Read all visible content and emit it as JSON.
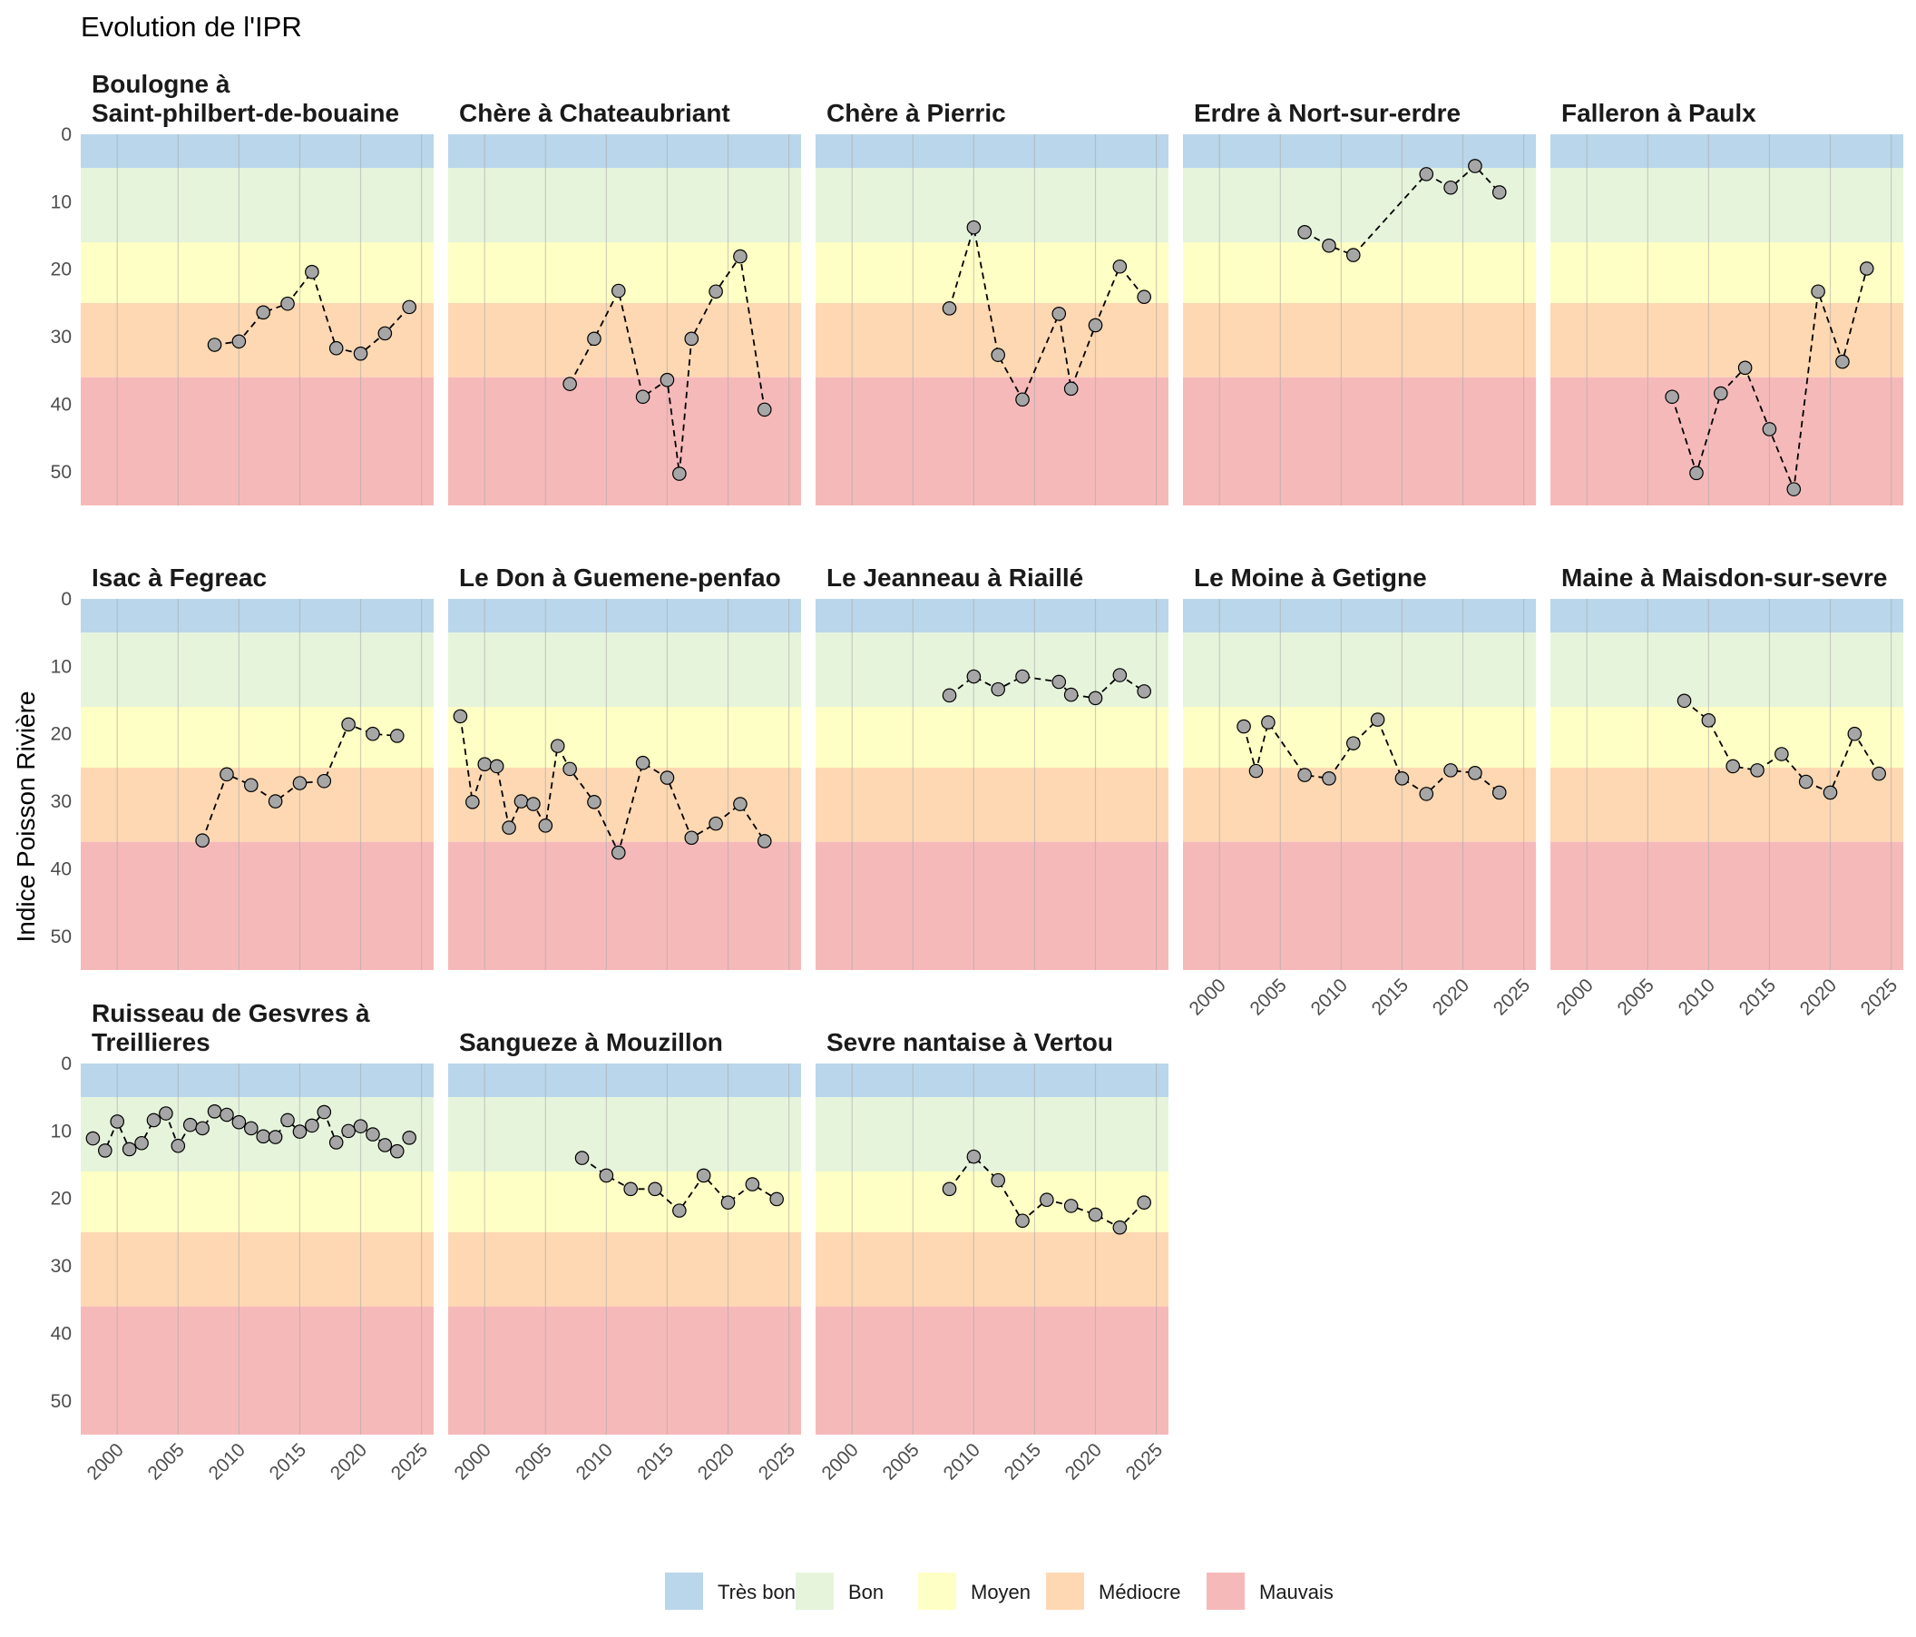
{
  "chart_data": {
    "type": "line",
    "title": "Evolution de l'IPR",
    "ylabel": "Indice Poisson Rivière",
    "xlabel": "",
    "xlim": [
      1997,
      2026
    ],
    "ylim": [
      0,
      55
    ],
    "y_reversed": true,
    "x_ticks": [
      2000,
      2005,
      2010,
      2015,
      2020,
      2025
    ],
    "y_ticks": [
      0,
      10,
      20,
      30,
      40,
      50
    ],
    "grid": true,
    "legend_position": "bottom",
    "classes": [
      {
        "label": "Très bon",
        "from": 0,
        "to": 5,
        "color": "#bad6ea"
      },
      {
        "label": "Bon",
        "from": 5,
        "to": 16,
        "color": "#e6f4dc"
      },
      {
        "label": "Moyen",
        "from": 16,
        "to": 25,
        "color": "#feffc4"
      },
      {
        "label": "Médiocre",
        "from": 25,
        "to": 36,
        "color": "#fed8b2"
      },
      {
        "label": "Mauvais",
        "from": 36,
        "to": 55,
        "color": "#f6b9ba"
      }
    ],
    "series_style": {
      "line_color": "#000000",
      "line_dash": "dashed",
      "point_fill": "#a6a6a6",
      "point_stroke": "#000000"
    },
    "panels": [
      {
        "title": [
          "Boulogne à",
          "Saint-philbert-de-bouaine"
        ],
        "points": [
          [
            2008,
            31.2
          ],
          [
            2010,
            30.7
          ],
          [
            2012,
            26.4
          ],
          [
            2014,
            25.1
          ],
          [
            2016,
            20.4
          ],
          [
            2018,
            31.7
          ],
          [
            2020,
            32.5
          ],
          [
            2022,
            29.5
          ],
          [
            2024,
            25.6
          ]
        ]
      },
      {
        "title": [
          "Chère à Chateaubriant"
        ],
        "points": [
          [
            2007,
            37.0
          ],
          [
            2009,
            30.3
          ],
          [
            2011,
            23.2
          ],
          [
            2013,
            38.9
          ],
          [
            2015,
            36.4
          ],
          [
            2016,
            50.3
          ],
          [
            2017,
            30.3
          ],
          [
            2019,
            23.3
          ],
          [
            2021,
            18.1
          ],
          [
            2023,
            40.8
          ]
        ]
      },
      {
        "title": [
          "Chère à Pierric"
        ],
        "points": [
          [
            2008,
            25.8
          ],
          [
            2010,
            13.8
          ],
          [
            2012,
            32.7
          ],
          [
            2014,
            39.3
          ],
          [
            2017,
            26.6
          ],
          [
            2018,
            37.7
          ],
          [
            2020,
            28.3
          ],
          [
            2022,
            19.6
          ],
          [
            2024,
            24.1
          ]
        ]
      },
      {
        "title": [
          "Erdre à Nort-sur-erdre"
        ],
        "points": [
          [
            2007,
            14.5
          ],
          [
            2009,
            16.5
          ],
          [
            2011,
            17.9
          ],
          [
            2017,
            5.9
          ],
          [
            2019,
            7.9
          ],
          [
            2021,
            4.7
          ],
          [
            2023,
            8.6
          ]
        ]
      },
      {
        "title": [
          "Falleron à Paulx"
        ],
        "points": [
          [
            2007,
            38.9
          ],
          [
            2009,
            50.2
          ],
          [
            2011,
            38.4
          ],
          [
            2013,
            34.6
          ],
          [
            2015,
            43.7
          ],
          [
            2017,
            52.6
          ],
          [
            2019,
            23.3
          ],
          [
            2021,
            33.7
          ],
          [
            2023,
            19.9
          ]
        ]
      },
      {
        "title": [
          "Isac à Fegreac"
        ],
        "points": [
          [
            2007,
            35.8
          ],
          [
            2009,
            26.0
          ],
          [
            2011,
            27.6
          ],
          [
            2013,
            30.0
          ],
          [
            2015,
            27.3
          ],
          [
            2017,
            27.0
          ],
          [
            2019,
            18.6
          ],
          [
            2021,
            20.0
          ],
          [
            2023,
            20.3
          ]
        ]
      },
      {
        "title": [
          "Le Don à Guemene-penfao"
        ],
        "points": [
          [
            1998,
            17.4
          ],
          [
            1999,
            30.1
          ],
          [
            2000,
            24.5
          ],
          [
            2001,
            24.8
          ],
          [
            2002,
            33.9
          ],
          [
            2003,
            30.0
          ],
          [
            2004,
            30.4
          ],
          [
            2005,
            33.6
          ],
          [
            2006,
            21.8
          ],
          [
            2007,
            25.2
          ],
          [
            2009,
            30.1
          ],
          [
            2011,
            37.6
          ],
          [
            2013,
            24.3
          ],
          [
            2015,
            26.5
          ],
          [
            2017,
            35.4
          ],
          [
            2019,
            33.3
          ],
          [
            2021,
            30.4
          ],
          [
            2023,
            35.9
          ]
        ]
      },
      {
        "title": [
          "Le Jeanneau à Riaillé"
        ],
        "points": [
          [
            2008,
            14.3
          ],
          [
            2010,
            11.5
          ],
          [
            2012,
            13.4
          ],
          [
            2014,
            11.5
          ],
          [
            2017,
            12.3
          ],
          [
            2018,
            14.2
          ],
          [
            2020,
            14.7
          ],
          [
            2022,
            11.3
          ],
          [
            2024,
            13.7
          ]
        ]
      },
      {
        "title": [
          "Le Moine à Getigne"
        ],
        "points": [
          [
            2002,
            18.9
          ],
          [
            2003,
            25.5
          ],
          [
            2004,
            18.3
          ],
          [
            2007,
            26.1
          ],
          [
            2009,
            26.6
          ],
          [
            2011,
            21.4
          ],
          [
            2013,
            17.9
          ],
          [
            2015,
            26.6
          ],
          [
            2017,
            28.9
          ],
          [
            2019,
            25.4
          ],
          [
            2021,
            25.8
          ],
          [
            2023,
            28.7
          ]
        ]
      },
      {
        "title": [
          "Maine à Maisdon-sur-sevre"
        ],
        "points": [
          [
            2008,
            15.1
          ],
          [
            2010,
            18.0
          ],
          [
            2012,
            24.8
          ],
          [
            2014,
            25.4
          ],
          [
            2016,
            23.0
          ],
          [
            2018,
            27.1
          ],
          [
            2020,
            28.7
          ],
          [
            2022,
            20.0
          ],
          [
            2024,
            25.9
          ]
        ]
      },
      {
        "title": [
          "Ruisseau de Gesvres à",
          "Treillieres"
        ],
        "points": [
          [
            1998,
            11.1
          ],
          [
            1999,
            12.9
          ],
          [
            2000,
            8.6
          ],
          [
            2001,
            12.7
          ],
          [
            2002,
            11.8
          ],
          [
            2003,
            8.4
          ],
          [
            2004,
            7.4
          ],
          [
            2005,
            12.2
          ],
          [
            2006,
            9.1
          ],
          [
            2007,
            9.6
          ],
          [
            2008,
            7.1
          ],
          [
            2009,
            7.6
          ],
          [
            2010,
            8.7
          ],
          [
            2011,
            9.6
          ],
          [
            2012,
            10.8
          ],
          [
            2013,
            10.9
          ],
          [
            2014,
            8.4
          ],
          [
            2015,
            10.1
          ],
          [
            2016,
            9.2
          ],
          [
            2017,
            7.2
          ],
          [
            2018,
            11.7
          ],
          [
            2019,
            10.0
          ],
          [
            2020,
            9.3
          ],
          [
            2021,
            10.5
          ],
          [
            2022,
            12.1
          ],
          [
            2023,
            13.0
          ],
          [
            2024,
            11.0
          ]
        ]
      },
      {
        "title": [
          "Sangueze à Mouzillon"
        ],
        "points": [
          [
            2008,
            14.0
          ],
          [
            2010,
            16.6
          ],
          [
            2012,
            18.6
          ],
          [
            2014,
            18.6
          ],
          [
            2016,
            21.8
          ],
          [
            2018,
            16.6
          ],
          [
            2020,
            20.6
          ],
          [
            2022,
            17.9
          ],
          [
            2024,
            20.1
          ]
        ]
      },
      {
        "title": [
          "Sevre nantaise à Vertou"
        ],
        "points": [
          [
            2008,
            18.6
          ],
          [
            2010,
            13.8
          ],
          [
            2012,
            17.3
          ],
          [
            2014,
            23.3
          ],
          [
            2016,
            20.2
          ],
          [
            2018,
            21.1
          ],
          [
            2020,
            22.4
          ],
          [
            2022,
            24.3
          ],
          [
            2024,
            20.6
          ]
        ]
      }
    ]
  }
}
